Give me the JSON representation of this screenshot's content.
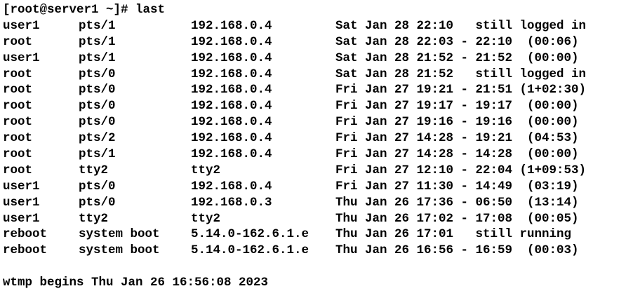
{
  "terminal": {
    "prompt": "[root@server1 ~]#",
    "command": "last",
    "rows": [
      {
        "user": "user1",
        "tty": "pts/1",
        "host": "192.168.0.4",
        "time": "Sat Jan 28 22:10   still logged in"
      },
      {
        "user": "root",
        "tty": "pts/1",
        "host": "192.168.0.4",
        "time": "Sat Jan 28 22:03 - 22:10  (00:06)"
      },
      {
        "user": "user1",
        "tty": "pts/1",
        "host": "192.168.0.4",
        "time": "Sat Jan 28 21:52 - 21:52  (00:00)"
      },
      {
        "user": "root",
        "tty": "pts/0",
        "host": "192.168.0.4",
        "time": "Sat Jan 28 21:52   still logged in"
      },
      {
        "user": "root",
        "tty": "pts/0",
        "host": "192.168.0.4",
        "time": "Fri Jan 27 19:21 - 21:51 (1+02:30)"
      },
      {
        "user": "root",
        "tty": "pts/0",
        "host": "192.168.0.4",
        "time": "Fri Jan 27 19:17 - 19:17  (00:00)"
      },
      {
        "user": "root",
        "tty": "pts/0",
        "host": "192.168.0.4",
        "time": "Fri Jan 27 19:16 - 19:16  (00:00)"
      },
      {
        "user": "root",
        "tty": "pts/2",
        "host": "192.168.0.4",
        "time": "Fri Jan 27 14:28 - 19:21  (04:53)"
      },
      {
        "user": "root",
        "tty": "pts/1",
        "host": "192.168.0.4",
        "time": "Fri Jan 27 14:28 - 14:28  (00:00)"
      },
      {
        "user": "root",
        "tty": "tty2",
        "host": "tty2",
        "time": "Fri Jan 27 12:10 - 22:04 (1+09:53)"
      },
      {
        "user": "user1",
        "tty": "pts/0",
        "host": "192.168.0.4",
        "time": "Fri Jan 27 11:30 - 14:49  (03:19)"
      },
      {
        "user": "user1",
        "tty": "pts/0",
        "host": "192.168.0.3",
        "time": "Thu Jan 26 17:36 - 06:50  (13:14)"
      },
      {
        "user": "user1",
        "tty": "tty2",
        "host": "tty2",
        "time": "Thu Jan 26 17:02 - 17:08  (00:05)"
      },
      {
        "user": "reboot",
        "tty": "system boot",
        "host": "5.14.0-162.6.1.e",
        "time": "Thu Jan 26 17:01   still running"
      },
      {
        "user": "reboot",
        "tty": "system boot",
        "host": "5.14.0-162.6.1.e",
        "time": "Thu Jan 26 16:56 - 16:59  (00:03)"
      }
    ],
    "footer": "wtmp begins Thu Jan 26 16:56:08 2023"
  }
}
